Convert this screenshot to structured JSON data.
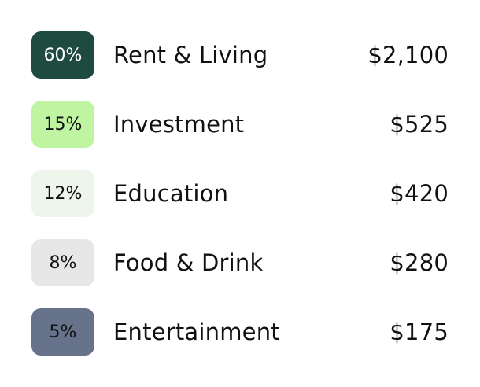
{
  "items": [
    {
      "percent": "60%",
      "category": "Rent & Living",
      "amount": "$2,100",
      "badge_bg": "#1f4a40",
      "badge_fg": "#ffffff"
    },
    {
      "percent": "15%",
      "category": "Investment",
      "amount": "$525",
      "badge_bg": "#bff5a1",
      "badge_fg": "#111111"
    },
    {
      "percent": "12%",
      "category": "Education",
      "amount": "$420",
      "badge_bg": "#eef5ea",
      "badge_fg": "#111111"
    },
    {
      "percent": "8%",
      "category": "Food & Drink",
      "amount": "$280",
      "badge_bg": "#e6e7e6",
      "badge_fg": "#111111"
    },
    {
      "percent": "5%",
      "category": "Entertainment",
      "amount": "$175",
      "badge_bg": "#66738a",
      "badge_fg": "#111111"
    }
  ]
}
